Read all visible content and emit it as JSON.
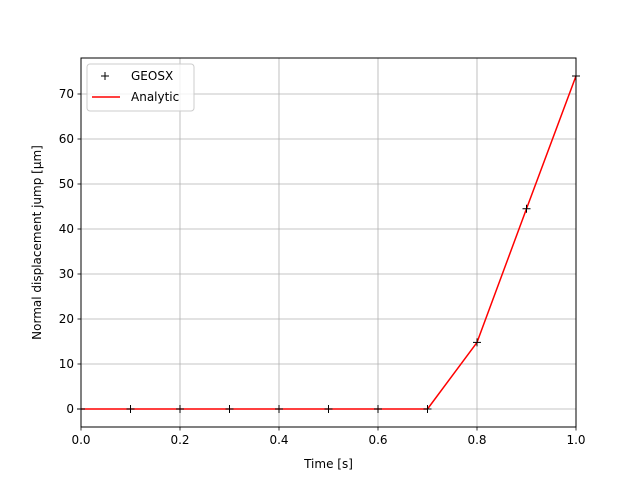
{
  "chart_data": {
    "type": "line",
    "title": "",
    "xlabel": "Time [s]",
    "ylabel": "Normal displacement jump [μm]",
    "xlim": [
      0.0,
      1.0
    ],
    "ylim": [
      -4.0,
      78.0
    ],
    "xticks": [
      0.0,
      0.2,
      0.4,
      0.6,
      0.8,
      1.0
    ],
    "xtick_labels": [
      "0.0",
      "0.2",
      "0.4",
      "0.6",
      "0.8",
      "1.0"
    ],
    "yticks": [
      0,
      10,
      20,
      30,
      40,
      50,
      60,
      70
    ],
    "ytick_labels": [
      "0",
      "10",
      "20",
      "30",
      "40",
      "50",
      "60",
      "70"
    ],
    "grid": true,
    "legend_position": "top-left",
    "series": [
      {
        "name": "GEOSX",
        "style": "markers",
        "marker": "+",
        "color": "#000000",
        "x": [
          0.0,
          0.1,
          0.2,
          0.3,
          0.4,
          0.5,
          0.6,
          0.7,
          0.8,
          0.9,
          1.0
        ],
        "y": [
          0,
          0,
          0,
          0,
          0,
          0,
          0,
          0,
          14.8,
          44.5,
          74.0
        ]
      },
      {
        "name": "Analytic",
        "style": "line",
        "color": "#ff0000",
        "x": [
          0.0,
          0.1,
          0.2,
          0.3,
          0.4,
          0.5,
          0.6,
          0.7,
          0.8,
          0.9,
          1.0
        ],
        "y": [
          0,
          0,
          0,
          0,
          0,
          0,
          0,
          0,
          14.8,
          44.5,
          74.0
        ]
      }
    ]
  }
}
